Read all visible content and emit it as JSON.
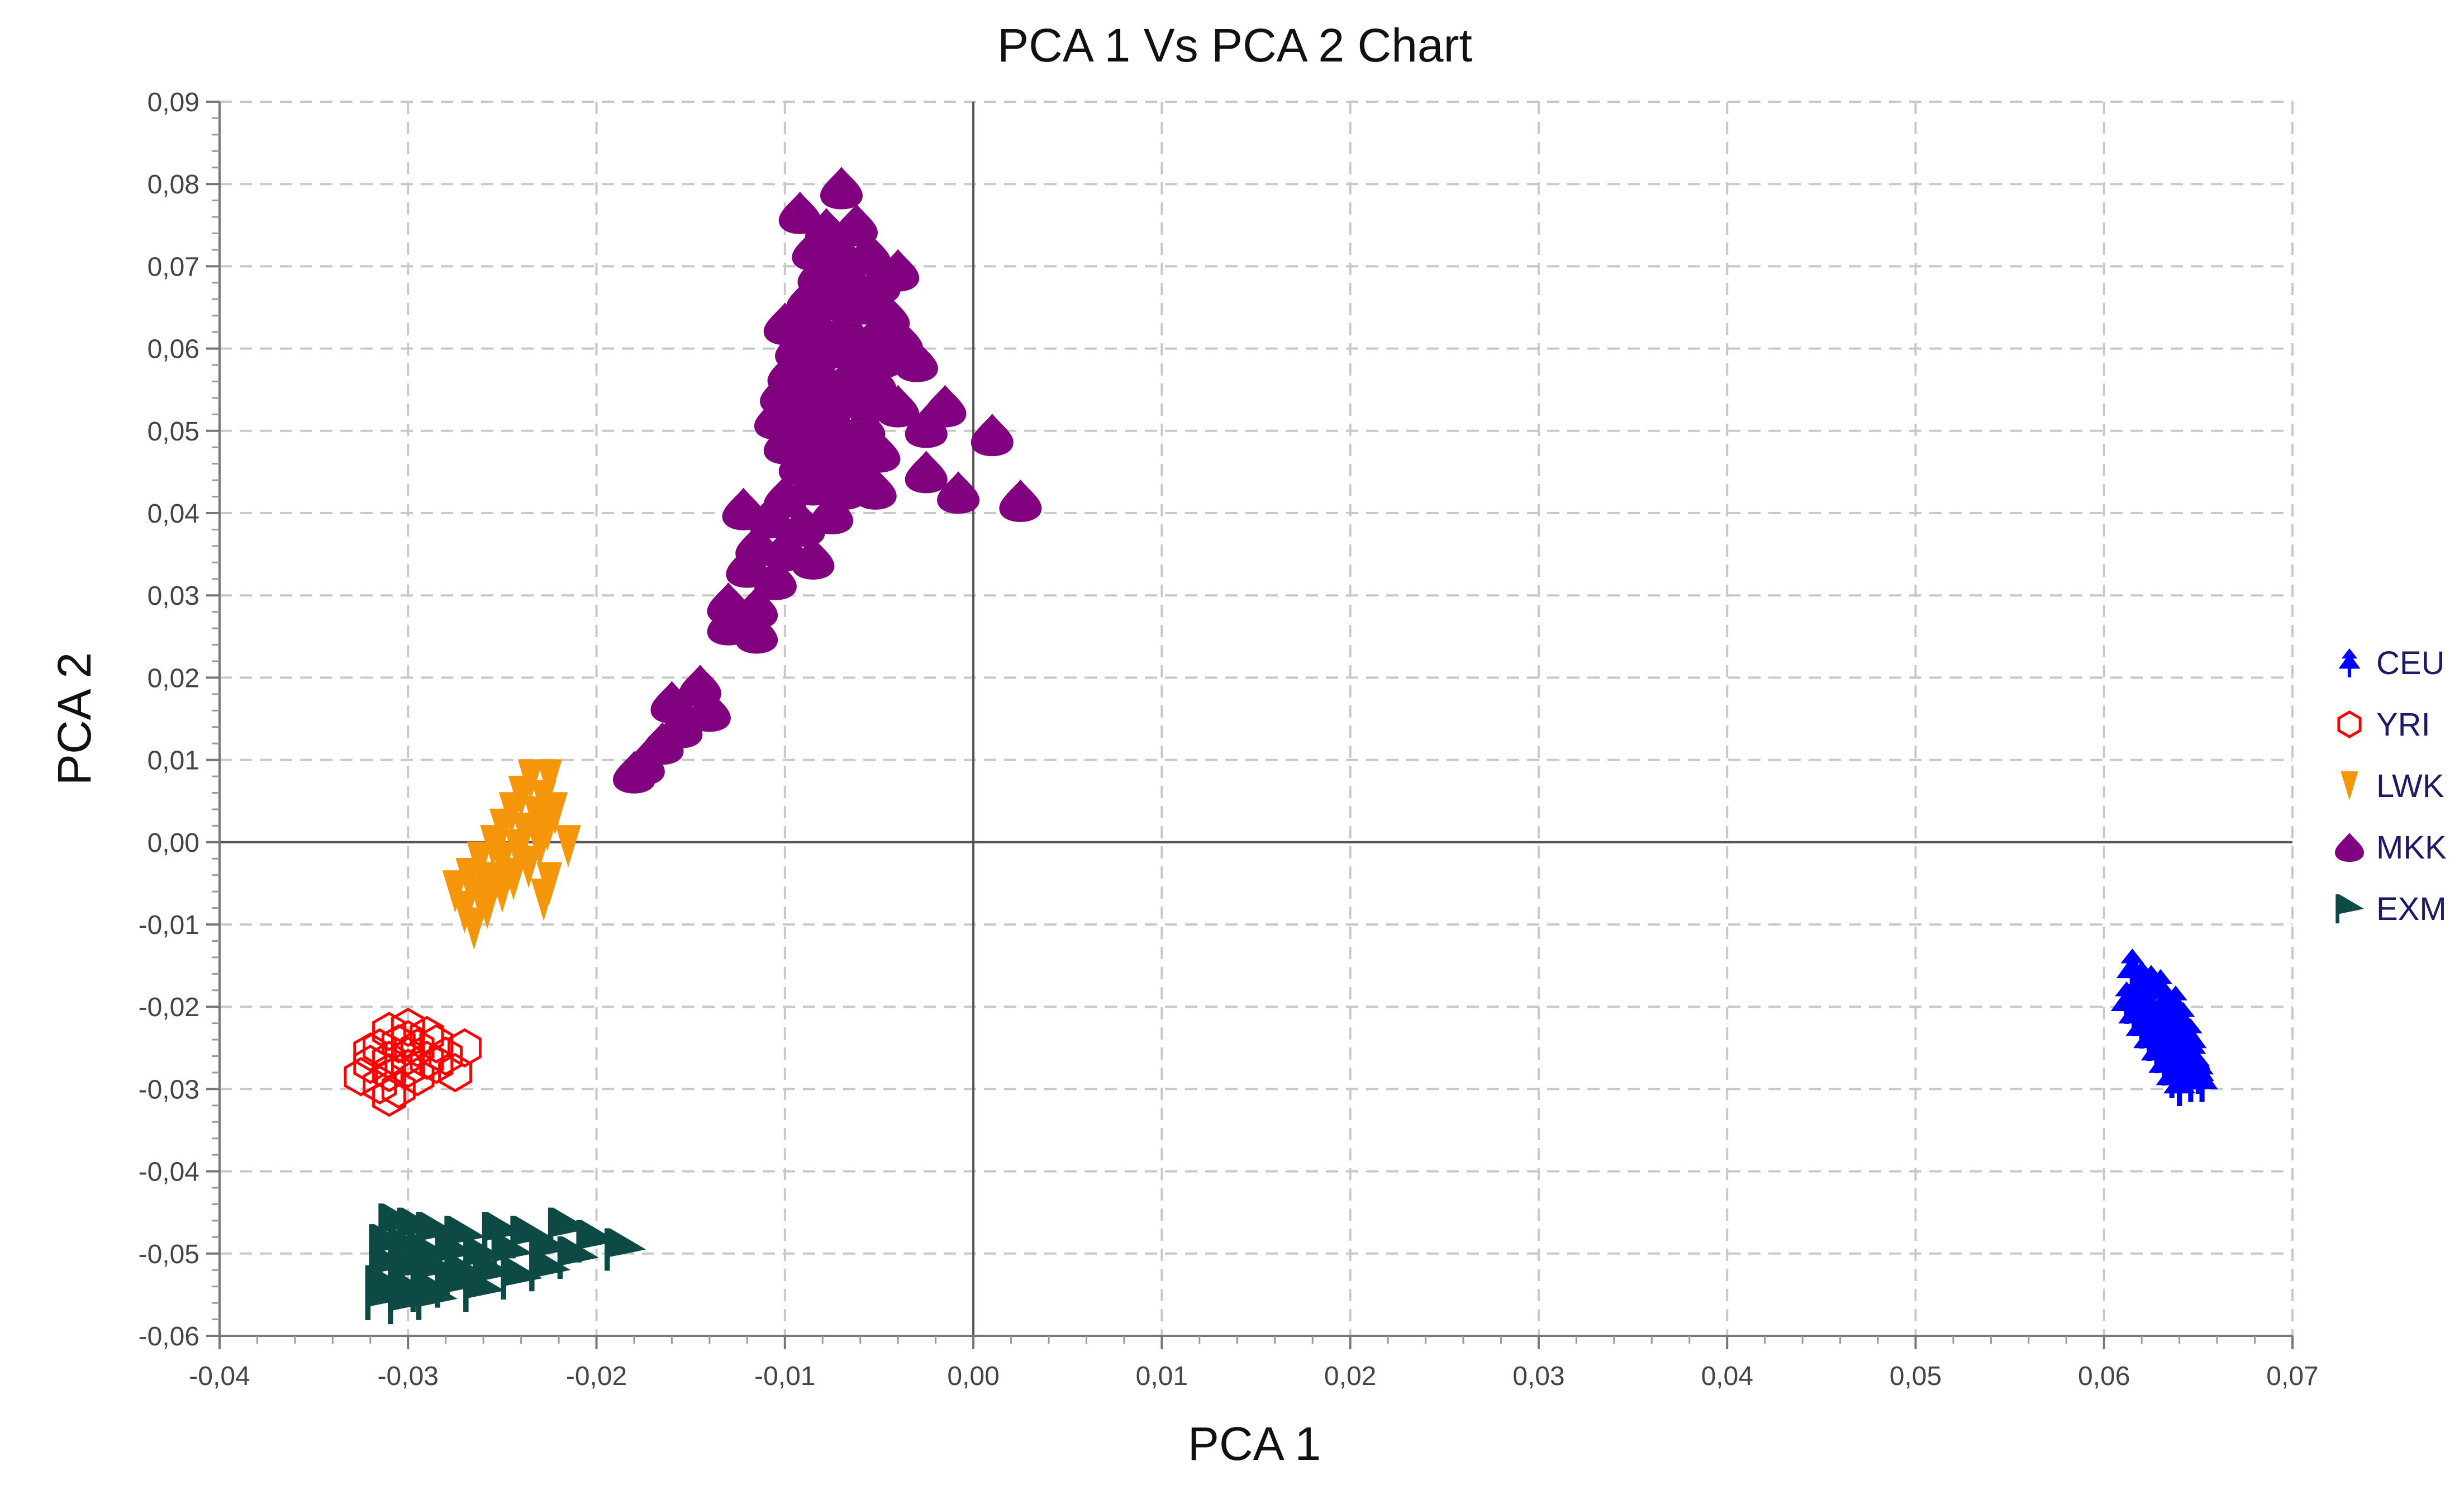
{
  "chart_data": {
    "type": "scatter",
    "title": "PCA 1 Vs PCA 2 Chart",
    "xlabel": "PCA 1",
    "ylabel": "PCA 2",
    "xlim": [
      -0.04,
      0.07
    ],
    "ylim": [
      -0.06,
      0.09
    ],
    "x_ticks": [
      -0.04,
      -0.03,
      -0.02,
      -0.01,
      0.0,
      0.01,
      0.02,
      0.03,
      0.04,
      0.05,
      0.06,
      0.07
    ],
    "y_ticks": [
      -0.06,
      -0.05,
      -0.04,
      -0.03,
      -0.02,
      -0.01,
      0.0,
      0.01,
      0.02,
      0.03,
      0.04,
      0.05,
      0.06,
      0.07,
      0.08,
      0.09
    ],
    "x_tick_labels": [
      "-0,04",
      "-0,03",
      "-0,02",
      "-0,01",
      "0,00",
      "0,01",
      "0,02",
      "0,03",
      "0,04",
      "0,05",
      "0,06",
      "0,07"
    ],
    "y_tick_labels": [
      "-0,06",
      "-0,05",
      "-0,04",
      "-0,03",
      "-0,02",
      "-0,01",
      "0,00",
      "0,01",
      "0,02",
      "0,03",
      "0,04",
      "0,05",
      "0,06",
      "0,07",
      "0,08",
      "0,09"
    ],
    "grid": true,
    "legend_position": "right",
    "series": [
      {
        "name": "CEU",
        "marker": "tree",
        "color": "#0000ff",
        "points": [
          [
            0.0615,
            -0.0155
          ],
          [
            0.062,
            -0.017
          ],
          [
            0.0618,
            -0.0185
          ],
          [
            0.0625,
            -0.0175
          ],
          [
            0.063,
            -0.018
          ],
          [
            0.0612,
            -0.0195
          ],
          [
            0.0622,
            -0.02
          ],
          [
            0.0632,
            -0.0195
          ],
          [
            0.0638,
            -0.02
          ],
          [
            0.0616,
            -0.021
          ],
          [
            0.0626,
            -0.0215
          ],
          [
            0.0636,
            -0.021
          ],
          [
            0.0642,
            -0.022
          ],
          [
            0.062,
            -0.0225
          ],
          [
            0.063,
            -0.023
          ],
          [
            0.064,
            -0.0235
          ],
          [
            0.0646,
            -0.024
          ],
          [
            0.0624,
            -0.024
          ],
          [
            0.0634,
            -0.0245
          ],
          [
            0.0644,
            -0.0255
          ],
          [
            0.0628,
            -0.0255
          ],
          [
            0.0638,
            -0.026
          ],
          [
            0.0648,
            -0.0265
          ],
          [
            0.0632,
            -0.027
          ],
          [
            0.0642,
            -0.0275
          ],
          [
            0.065,
            -0.028
          ],
          [
            0.0636,
            -0.0285
          ],
          [
            0.0646,
            -0.029
          ],
          [
            0.064,
            -0.0295
          ],
          [
            0.0652,
            -0.029
          ]
        ]
      },
      {
        "name": "YRI",
        "marker": "hexagon",
        "color": "#ff0000",
        "points": [
          [
            -0.03,
            -0.0225
          ],
          [
            -0.031,
            -0.023
          ],
          [
            -0.029,
            -0.0235
          ],
          [
            -0.0305,
            -0.0245
          ],
          [
            -0.0315,
            -0.025
          ],
          [
            -0.0295,
            -0.025
          ],
          [
            -0.0285,
            -0.0245
          ],
          [
            -0.03,
            -0.026
          ],
          [
            -0.031,
            -0.0265
          ],
          [
            -0.032,
            -0.027
          ],
          [
            -0.029,
            -0.0265
          ],
          [
            -0.028,
            -0.026
          ],
          [
            -0.03,
            -0.0275
          ],
          [
            -0.031,
            -0.028
          ],
          [
            -0.0295,
            -0.0285
          ],
          [
            -0.0315,
            -0.0295
          ],
          [
            -0.0305,
            -0.03
          ],
          [
            -0.0325,
            -0.0285
          ],
          [
            -0.0275,
            -0.028
          ],
          [
            -0.027,
            -0.025
          ],
          [
            -0.0285,
            -0.027
          ],
          [
            -0.032,
            -0.0255
          ],
          [
            -0.03,
            -0.024
          ],
          [
            -0.031,
            -0.031
          ]
        ]
      },
      {
        "name": "LWK",
        "marker": "triangle-down",
        "color": "#f5960a",
        "points": [
          [
            -0.0235,
            0.0075
          ],
          [
            -0.0225,
            0.0075
          ],
          [
            -0.024,
            0.0055
          ],
          [
            -0.0228,
            0.005
          ],
          [
            -0.0245,
            0.0035
          ],
          [
            -0.0232,
            0.003
          ],
          [
            -0.0222,
            0.0035
          ],
          [
            -0.025,
            0.0015
          ],
          [
            -0.0238,
            0.001
          ],
          [
            -0.0226,
            0.0015
          ],
          [
            -0.0255,
            -0.0005
          ],
          [
            -0.0242,
            -0.001
          ],
          [
            -0.023,
            -0.0005
          ],
          [
            -0.0215,
            -0.0005
          ],
          [
            -0.0262,
            -0.0025
          ],
          [
            -0.025,
            -0.0025
          ],
          [
            -0.0236,
            -0.003
          ],
          [
            -0.0268,
            -0.0045
          ],
          [
            -0.0256,
            -0.005
          ],
          [
            -0.0244,
            -0.0045
          ],
          [
            -0.0225,
            -0.005
          ],
          [
            -0.0275,
            -0.006
          ],
          [
            -0.0262,
            -0.0065
          ],
          [
            -0.025,
            -0.006
          ],
          [
            -0.027,
            -0.0085
          ],
          [
            -0.0258,
            -0.008
          ],
          [
            -0.0265,
            -0.0105
          ],
          [
            -0.0228,
            -0.007
          ]
        ]
      },
      {
        "name": "MKK",
        "marker": "drop",
        "color": "#800080",
        "points": [
          [
            -0.007,
            0.0795
          ],
          [
            -0.0092,
            0.0765
          ],
          [
            -0.0078,
            0.0745
          ],
          [
            -0.0062,
            0.075
          ],
          [
            -0.0085,
            0.072
          ],
          [
            -0.007,
            0.0715
          ],
          [
            -0.0055,
            0.0715
          ],
          [
            -0.004,
            0.0695
          ],
          [
            -0.0082,
            0.069
          ],
          [
            -0.0066,
            0.0685
          ],
          [
            -0.005,
            0.068
          ],
          [
            -0.0088,
            0.066
          ],
          [
            -0.0074,
            0.066
          ],
          [
            -0.0058,
            0.0655
          ],
          [
            -0.0045,
            0.064
          ],
          [
            -0.01,
            0.063
          ],
          [
            -0.0084,
            0.063
          ],
          [
            -0.0068,
            0.0625
          ],
          [
            -0.0052,
            0.0615
          ],
          [
            -0.0038,
            0.061
          ],
          [
            -0.0094,
            0.06
          ],
          [
            -0.0078,
            0.06
          ],
          [
            -0.0062,
            0.0595
          ],
          [
            -0.0048,
            0.059
          ],
          [
            -0.003,
            0.0585
          ],
          [
            -0.0098,
            0.057
          ],
          [
            -0.0082,
            0.057
          ],
          [
            -0.0066,
            0.0565
          ],
          [
            -0.0052,
            0.056
          ],
          [
            -0.0102,
            0.0545
          ],
          [
            -0.0086,
            0.054
          ],
          [
            -0.007,
            0.054
          ],
          [
            -0.0056,
            0.0535
          ],
          [
            -0.004,
            0.053
          ],
          [
            -0.0015,
            0.053
          ],
          [
            -0.0105,
            0.0515
          ],
          [
            -0.009,
            0.0515
          ],
          [
            -0.0074,
            0.051
          ],
          [
            -0.0058,
            0.0505
          ],
          [
            -0.0025,
            0.0505
          ],
          [
            0.001,
            0.0495
          ],
          [
            -0.01,
            0.0485
          ],
          [
            -0.0084,
            0.0485
          ],
          [
            -0.0068,
            0.048
          ],
          [
            -0.005,
            0.0475
          ],
          [
            -0.0092,
            0.046
          ],
          [
            -0.0076,
            0.0455
          ],
          [
            -0.006,
            0.045
          ],
          [
            -0.0025,
            0.045
          ],
          [
            -0.0085,
            0.0435
          ],
          [
            -0.0068,
            0.043
          ],
          [
            -0.0052,
            0.043
          ],
          [
            -0.0008,
            0.0425
          ],
          [
            0.0025,
            0.0415
          ],
          [
            -0.01,
            0.042
          ],
          [
            -0.0122,
            0.0405
          ],
          [
            -0.0108,
            0.0395
          ],
          [
            -0.009,
            0.0385
          ],
          [
            -0.0075,
            0.04
          ],
          [
            -0.0115,
            0.036
          ],
          [
            -0.01,
            0.0355
          ],
          [
            -0.0085,
            0.0345
          ],
          [
            -0.012,
            0.0335
          ],
          [
            -0.0105,
            0.032
          ],
          [
            -0.013,
            0.029
          ],
          [
            -0.0115,
            0.0285
          ],
          [
            -0.013,
            0.0265
          ],
          [
            -0.0115,
            0.0255
          ],
          [
            -0.0145,
            0.019
          ],
          [
            -0.016,
            0.017
          ],
          [
            -0.014,
            0.016
          ],
          [
            -0.0155,
            0.014
          ],
          [
            -0.0165,
            0.012
          ],
          [
            -0.0175,
            0.0095
          ],
          [
            -0.018,
            0.0085
          ]
        ]
      },
      {
        "name": "EXM",
        "marker": "flag",
        "color": "#0d4a45",
        "points": [
          [
            -0.0305,
            -0.0465
          ],
          [
            -0.0295,
            -0.047
          ],
          [
            -0.0285,
            -0.0475
          ],
          [
            -0.027,
            -0.048
          ],
          [
            -0.025,
            -0.0475
          ],
          [
            -0.0235,
            -0.048
          ],
          [
            -0.0215,
            -0.047
          ],
          [
            -0.02,
            -0.0485
          ],
          [
            -0.0185,
            -0.0495
          ],
          [
            -0.031,
            -0.049
          ],
          [
            -0.03,
            -0.0495
          ],
          [
            -0.029,
            -0.05
          ],
          [
            -0.0275,
            -0.05
          ],
          [
            -0.026,
            -0.0505
          ],
          [
            -0.0245,
            -0.05
          ],
          [
            -0.0225,
            -0.0495
          ],
          [
            -0.021,
            -0.0505
          ],
          [
            -0.031,
            -0.0515
          ],
          [
            -0.0298,
            -0.052
          ],
          [
            -0.0285,
            -0.052
          ],
          [
            -0.027,
            -0.0525
          ],
          [
            -0.0255,
            -0.0525
          ],
          [
            -0.024,
            -0.053
          ],
          [
            -0.0225,
            -0.052
          ],
          [
            -0.0312,
            -0.054
          ],
          [
            -0.03,
            -0.0545
          ],
          [
            -0.0288,
            -0.0545
          ],
          [
            -0.0275,
            -0.054
          ],
          [
            -0.026,
            -0.0545
          ],
          [
            -0.03,
            -0.056
          ],
          [
            -0.0285,
            -0.0555
          ],
          [
            -0.0312,
            -0.0555
          ]
        ]
      }
    ]
  }
}
